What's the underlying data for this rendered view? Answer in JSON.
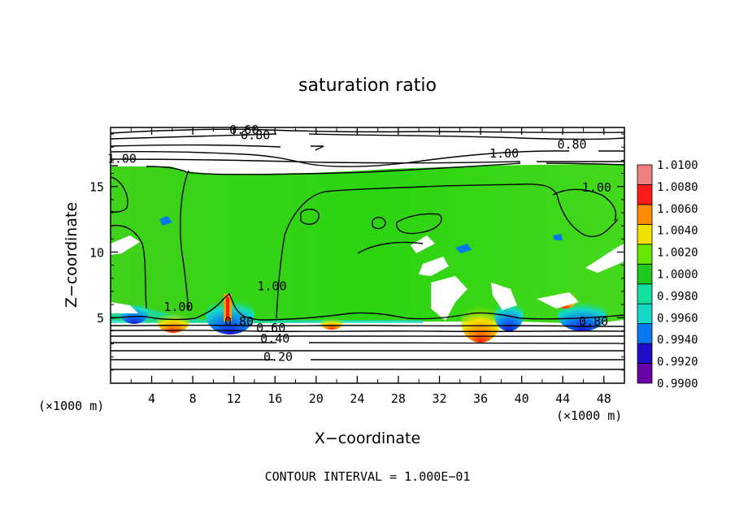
{
  "chart_data": {
    "type": "heatmap",
    "title": "saturation ratio",
    "xlabel": "X−coordinate",
    "ylabel": "Z−coordinate",
    "x_unit_left": "(×1000 m)",
    "x_unit_right": "(×1000 m)",
    "footer": "CONTOUR INTERVAL = 1.000E−01",
    "xlim": [
      0,
      50
    ],
    "ylim": [
      0,
      19.5
    ],
    "x_ticks": [
      4,
      8,
      12,
      16,
      20,
      24,
      28,
      32,
      36,
      40,
      44,
      48
    ],
    "x_tick_labels": [
      "4",
      "8",
      "12",
      "16",
      "20",
      "24",
      "28",
      "32",
      "36",
      "40",
      "44",
      "48"
    ],
    "y_ticks": [
      5,
      10,
      15
    ],
    "y_tick_labels": [
      "5",
      "10",
      "15"
    ],
    "colorbar": {
      "levels": [
        0.99,
        0.992,
        0.994,
        0.996,
        0.998,
        1.0,
        1.002,
        1.004,
        1.006,
        1.008,
        1.01
      ],
      "labels": [
        "0.9900",
        "0.9920",
        "0.9940",
        "0.9960",
        "0.9980",
        "1.0000",
        "1.0020",
        "1.0040",
        "1.0060",
        "1.0080",
        "1.0100"
      ],
      "colors": [
        "#6a00a8",
        "#1f10c8",
        "#0a78f0",
        "#16d8c8",
        "#10e0a0",
        "#1ec81e",
        "#66e600",
        "#f2e000",
        "#ff8c00",
        "#ff1a1a",
        "#f08080"
      ]
    },
    "contour_labels": [
      {
        "text": "0.60",
        "x": 13.0,
        "z": 19.0
      },
      {
        "text": "0.80",
        "x": 14.1,
        "z": 18.6
      },
      {
        "text": "0.80",
        "x": 44.9,
        "z": 17.9
      },
      {
        "text": "1.00",
        "x": 1.1,
        "z": 16.8
      },
      {
        "text": "1.00",
        "x": 38.3,
        "z": 17.2
      },
      {
        "text": "1.00",
        "x": 47.3,
        "z": 14.6
      },
      {
        "text": "1.00",
        "x": 6.6,
        "z": 5.5
      },
      {
        "text": "1.00",
        "x": 15.7,
        "z": 7.1
      },
      {
        "text": "0.80",
        "x": 12.5,
        "z": 4.4
      },
      {
        "text": "0.60",
        "x": 15.6,
        "z": 3.9
      },
      {
        "text": "0.40",
        "x": 16.0,
        "z": 3.1
      },
      {
        "text": "0.20",
        "x": 16.3,
        "z": 1.7
      },
      {
        "text": "0.80",
        "x": 47.0,
        "z": 4.4
      }
    ]
  }
}
